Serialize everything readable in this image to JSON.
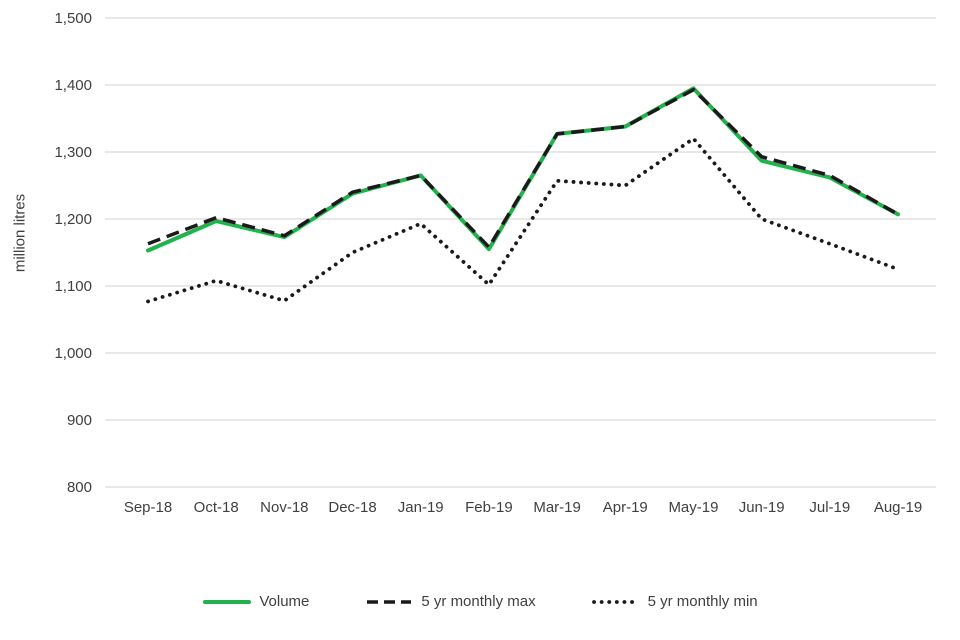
{
  "chart_data": {
    "type": "line",
    "title": "",
    "xlabel": "",
    "ylabel": "million litres",
    "ylim": [
      800,
      1500
    ],
    "grid": "horizontal",
    "legend_position": "bottom",
    "ytick_values": [
      800,
      900,
      1000,
      1100,
      1200,
      1300,
      1400,
      1500
    ],
    "ytick_labels": [
      "800",
      "900",
      "1,000",
      "1,100",
      "1,200",
      "1,300",
      "1,400",
      "1,500"
    ],
    "categories": [
      "Sep-18",
      "Oct-18",
      "Nov-18",
      "Dec-18",
      "Jan-19",
      "Feb-19",
      "Mar-19",
      "Apr-19",
      "May-19",
      "Jun-19",
      "Jul-19",
      "Aug-19"
    ],
    "series": [
      {
        "name": "Volume",
        "style": "solid",
        "color": "#22b14c",
        "values": [
          1153,
          1197,
          1173,
          1238,
          1265,
          1155,
          1327,
          1338,
          1395,
          1287,
          1262,
          1207
        ]
      },
      {
        "name": "5 yr monthly max",
        "style": "dashed",
        "color": "#1a1a1a",
        "values": [
          1163,
          1202,
          1175,
          1240,
          1265,
          1158,
          1327,
          1338,
          1393,
          1293,
          1265,
          1207
        ]
      },
      {
        "name": "5 yr monthly min",
        "style": "dotted",
        "color": "#1a1a1a",
        "values": [
          1077,
          1108,
          1078,
          1150,
          1193,
          1102,
          1257,
          1250,
          1320,
          1200,
          1163,
          1125
        ]
      }
    ],
    "colors": {
      "gridline": "#d9d9d9",
      "tick_text": "#404040",
      "background": "#ffffff"
    }
  }
}
